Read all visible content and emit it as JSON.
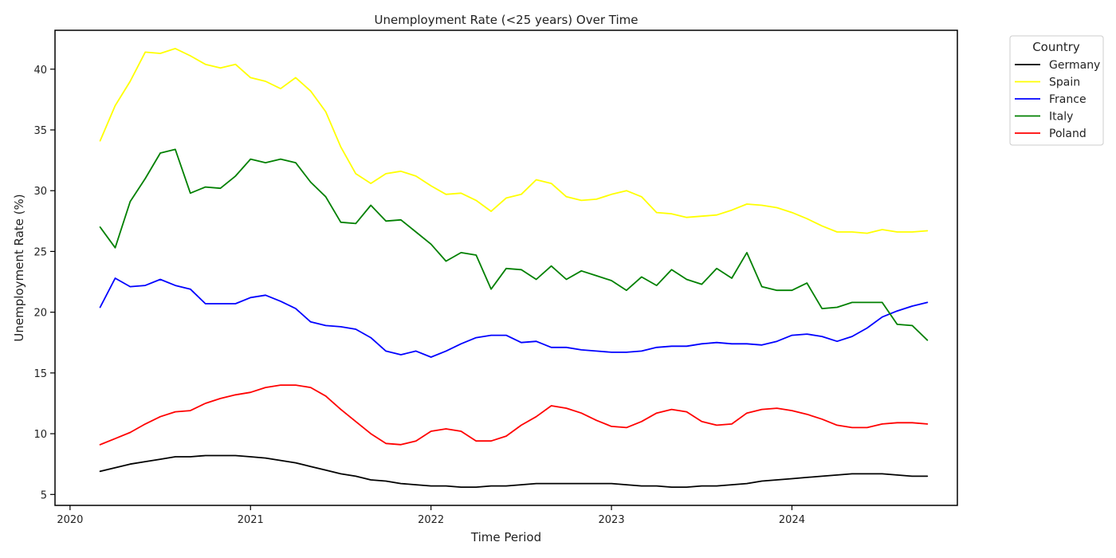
{
  "chart_data": {
    "type": "line",
    "title": "Unemployment Rate (<25 years) Over Time",
    "xlabel": "Time Period",
    "ylabel": "Unemployment Rate (%)",
    "x_ticks": [
      "2020",
      "2021",
      "2022",
      "2023",
      "2024"
    ],
    "y_ticks": [
      5,
      10,
      15,
      20,
      25,
      30,
      35,
      40
    ],
    "xlim": [
      "2019-12",
      "2024-12"
    ],
    "ylim": [
      4.1,
      43.2
    ],
    "grid": false,
    "legend": {
      "title": "Country",
      "position": "outside-top-right"
    },
    "x": [
      "2020-03",
      "2020-04",
      "2020-05",
      "2020-06",
      "2020-07",
      "2020-08",
      "2020-09",
      "2020-10",
      "2020-11",
      "2020-12",
      "2021-01",
      "2021-02",
      "2021-03",
      "2021-04",
      "2021-05",
      "2021-06",
      "2021-07",
      "2021-08",
      "2021-09",
      "2021-10",
      "2021-11",
      "2021-12",
      "2022-01",
      "2022-02",
      "2022-03",
      "2022-04",
      "2022-05",
      "2022-06",
      "2022-07",
      "2022-08",
      "2022-09",
      "2022-10",
      "2022-11",
      "2022-12",
      "2023-01",
      "2023-02",
      "2023-03",
      "2023-04",
      "2023-05",
      "2023-06",
      "2023-07",
      "2023-08",
      "2023-09",
      "2023-10",
      "2023-11",
      "2023-12",
      "2024-01",
      "2024-02",
      "2024-03",
      "2024-04",
      "2024-05",
      "2024-06",
      "2024-07",
      "2024-08",
      "2024-09",
      "2024-10"
    ],
    "series": [
      {
        "name": "Germany",
        "color": "#000000",
        "values": [
          6.9,
          7.2,
          7.5,
          7.7,
          7.9,
          8.1,
          8.1,
          8.2,
          8.2,
          8.2,
          8.1,
          8.0,
          7.8,
          7.6,
          7.3,
          7.0,
          6.7,
          6.5,
          6.2,
          6.1,
          5.9,
          5.8,
          5.7,
          5.7,
          5.6,
          5.6,
          5.7,
          5.7,
          5.8,
          5.9,
          5.9,
          5.9,
          5.9,
          5.9,
          5.9,
          5.8,
          5.7,
          5.7,
          5.6,
          5.6,
          5.7,
          5.7,
          5.8,
          5.9,
          6.1,
          6.2,
          6.3,
          6.4,
          6.5,
          6.6,
          6.7,
          6.7,
          6.7,
          6.6,
          6.5,
          6.5
        ]
      },
      {
        "name": "Spain",
        "color": "#ffff00",
        "values": [
          34.1,
          37.0,
          39.0,
          41.4,
          41.3,
          41.7,
          41.1,
          40.4,
          40.1,
          40.4,
          39.3,
          39.0,
          38.4,
          39.3,
          38.2,
          36.5,
          33.6,
          31.4,
          30.6,
          31.4,
          31.6,
          31.2,
          30.4,
          29.7,
          29.8,
          29.2,
          28.3,
          29.4,
          29.7,
          30.9,
          30.6,
          29.5,
          29.2,
          29.3,
          29.7,
          30.0,
          29.5,
          28.2,
          28.1,
          27.8,
          27.9,
          28.0,
          28.4,
          28.9,
          28.8,
          28.6,
          28.2,
          27.7,
          27.1,
          26.6,
          26.6,
          26.5,
          26.8,
          26.6,
          26.6,
          26.7
        ]
      },
      {
        "name": "France",
        "color": "#0000ff",
        "values": [
          20.4,
          22.8,
          22.1,
          22.2,
          22.7,
          22.2,
          21.9,
          20.7,
          20.7,
          20.7,
          21.2,
          21.4,
          20.9,
          20.3,
          19.2,
          18.9,
          18.8,
          18.6,
          17.9,
          16.8,
          16.5,
          16.8,
          16.3,
          16.8,
          17.4,
          17.9,
          18.1,
          18.1,
          17.5,
          17.6,
          17.1,
          17.1,
          16.9,
          16.8,
          16.7,
          16.7,
          16.8,
          17.1,
          17.2,
          17.2,
          17.4,
          17.5,
          17.4,
          17.4,
          17.3,
          17.6,
          18.1,
          18.2,
          18.0,
          17.6,
          18.0,
          18.7,
          19.6,
          20.1,
          20.5,
          20.8
        ]
      },
      {
        "name": "Italy",
        "color": "#008000",
        "values": [
          27.0,
          25.3,
          29.1,
          31.0,
          33.1,
          33.4,
          29.8,
          30.3,
          30.2,
          31.2,
          32.6,
          32.3,
          32.6,
          32.3,
          30.7,
          29.5,
          27.4,
          27.3,
          28.8,
          27.5,
          27.6,
          26.6,
          25.6,
          24.2,
          24.9,
          24.7,
          21.9,
          23.6,
          23.5,
          22.7,
          23.8,
          22.7,
          23.4,
          23.0,
          22.6,
          21.8,
          22.9,
          22.2,
          23.5,
          22.7,
          22.3,
          23.6,
          22.8,
          24.9,
          22.1,
          21.8,
          21.8,
          22.4,
          20.3,
          20.4,
          20.8,
          20.8,
          20.8,
          19.0,
          18.9,
          17.7
        ]
      },
      {
        "name": "Poland",
        "color": "#ff0000",
        "values": [
          9.1,
          9.6,
          10.1,
          10.8,
          11.4,
          11.8,
          11.9,
          12.5,
          12.9,
          13.2,
          13.4,
          13.8,
          14.0,
          14.0,
          13.8,
          13.1,
          12.0,
          11.0,
          10.0,
          9.2,
          9.1,
          9.4,
          10.2,
          10.4,
          10.2,
          9.4,
          9.4,
          9.8,
          10.7,
          11.4,
          12.3,
          12.1,
          11.7,
          11.1,
          10.6,
          10.5,
          11.0,
          11.7,
          12.0,
          11.8,
          11.0,
          10.7,
          10.8,
          11.7,
          12.0,
          12.1,
          11.9,
          11.6,
          11.2,
          10.7,
          10.5,
          10.5,
          10.8,
          10.9,
          10.9,
          10.8
        ]
      }
    ]
  }
}
